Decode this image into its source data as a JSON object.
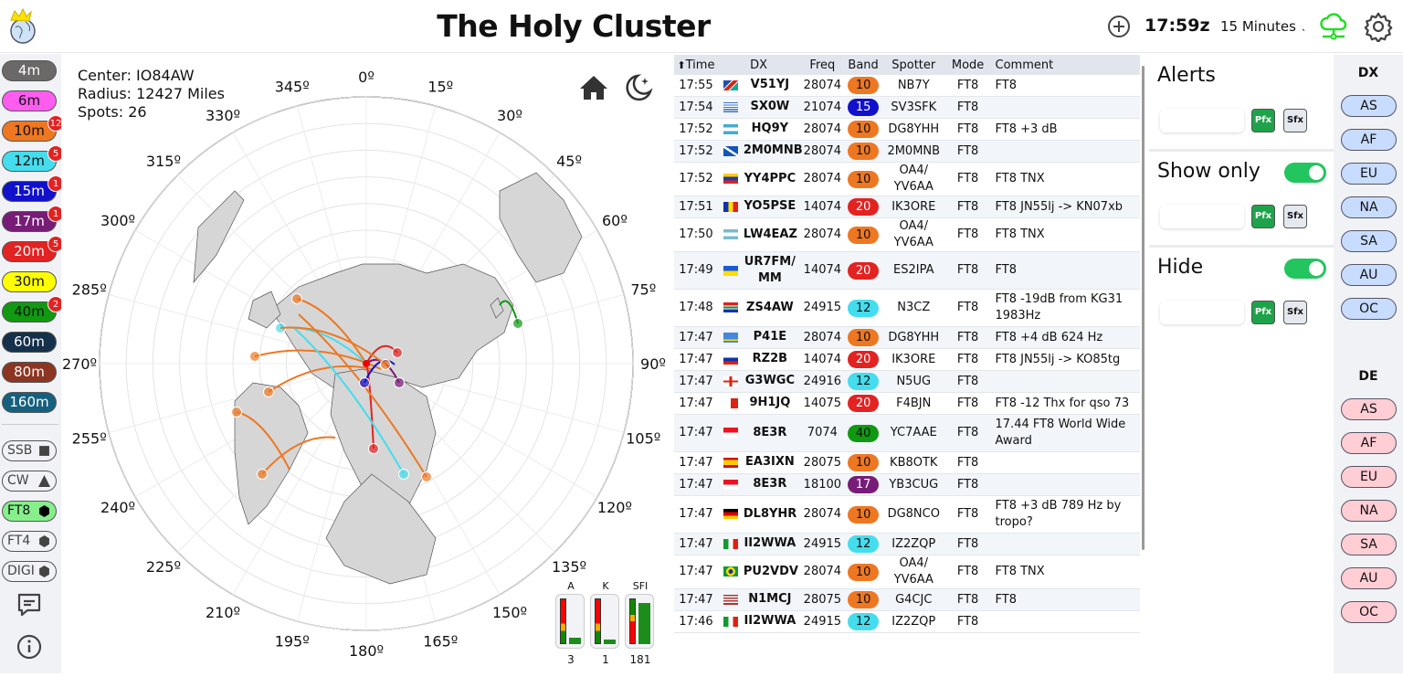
{
  "header": {
    "title": "The Holy Cluster",
    "clock": "17:59z",
    "window": "15 Minutes",
    "icons": {
      "logo": "globe-crown-logo",
      "add": "plus-circle-icon",
      "network": "cloud-network-icon",
      "settings": "gear-icon"
    },
    "network_color": "#22dd22"
  },
  "bands": [
    {
      "label": "4m",
      "color": "#6b6868",
      "text": "#fff",
      "count": null
    },
    {
      "label": "6m",
      "color": "#ff5cf0",
      "text": "#111",
      "count": null
    },
    {
      "label": "10m",
      "color": "#ee7722",
      "text": "#111",
      "count": "12"
    },
    {
      "label": "12m",
      "color": "#44ddee",
      "text": "#111",
      "count": "5"
    },
    {
      "label": "15m",
      "color": "#1111cc",
      "text": "#fff",
      "count": "1"
    },
    {
      "label": "17m",
      "color": "#771d77",
      "text": "#fff",
      "count": "1"
    },
    {
      "label": "20m",
      "color": "#e32222",
      "text": "#fff",
      "count": "5"
    },
    {
      "label": "30m",
      "color": "#ffff00",
      "text": "#111",
      "count": null
    },
    {
      "label": "40m",
      "color": "#119911",
      "text": "#111",
      "count": "2"
    },
    {
      "label": "60m",
      "color": "#15304a",
      "text": "#fff",
      "count": null
    },
    {
      "label": "80m",
      "color": "#8c3522",
      "text": "#fff",
      "count": null
    },
    {
      "label": "160m",
      "color": "#16607f",
      "text": "#fff",
      "count": null
    }
  ],
  "modes": [
    {
      "label": "SSB",
      "icon": "square-icon",
      "active": false
    },
    {
      "label": "CW",
      "icon": "triangle-icon",
      "active": false
    },
    {
      "label": "FT8",
      "icon": "hexagon-icon",
      "active": true
    },
    {
      "label": "FT4",
      "icon": "hexagon-icon",
      "active": false
    },
    {
      "label": "DIGI",
      "icon": "hexagon-icon",
      "active": false
    }
  ],
  "sidebar_icons": {
    "feedback": "chat-icon",
    "info": "info-icon"
  },
  "map": {
    "center": "Center: IO84AW",
    "radius": "Radius: 12427 Miles",
    "spots": "Spots: 26",
    "azimuths": [
      "0º",
      "15º",
      "30º",
      "45º",
      "60º",
      "75º",
      "90º",
      "105º",
      "120º",
      "135º",
      "150º",
      "165º",
      "180º",
      "195º",
      "210º",
      "225º",
      "240º",
      "255º",
      "270º",
      "285º",
      "300º",
      "315º",
      "330º",
      "345º"
    ],
    "icons": {
      "home": "home-icon",
      "night": "moon-stars-icon"
    },
    "solar": [
      {
        "label": "A",
        "value": "3",
        "level": 0.15
      },
      {
        "label": "K",
        "value": "1",
        "level": 0.1
      },
      {
        "label": "SFI",
        "value": "181",
        "level": 0.9
      }
    ]
  },
  "table": {
    "headers": [
      "Time",
      "DX",
      "Freq",
      "Band",
      "Spotter",
      "Mode",
      "Comment"
    ],
    "sort_icon": "sort-up-icon",
    "rows": [
      [
        "17:55",
        "namibia",
        "V51YJ",
        "28074",
        "10",
        "NB7Y",
        "FT8",
        "FT8"
      ],
      [
        "17:54",
        "greece",
        "SX0W",
        "21074",
        "15",
        "SV3SFK",
        "FT8",
        ""
      ],
      [
        "17:52",
        "honduras",
        "HQ9Y",
        "28074",
        "10",
        "DG8YHH",
        "FT8",
        "FT8 +3 dB"
      ],
      [
        "17:52",
        "scotland",
        "2M0MNB",
        "28074",
        "10",
        "2M0MNB",
        "FT8",
        ""
      ],
      [
        "17:52",
        "venezuela",
        "YY4PPC",
        "28074",
        "10",
        "OA4/ YV6AA",
        "FT8",
        "FT8 TNX"
      ],
      [
        "17:51",
        "romania",
        "YO5PSE",
        "14074",
        "20",
        "IK3ORE",
        "FT8",
        "FT8 JN55lj -> KN07xb"
      ],
      [
        "17:50",
        "argentina",
        "LW4EAZ",
        "28074",
        "10",
        "OA4/ YV6AA",
        "FT8",
        "FT8 TNX"
      ],
      [
        "17:49",
        "ukraine",
        "UR7FM/ MM",
        "14074",
        "20",
        "ES2IPA",
        "FT8",
        "FT8"
      ],
      [
        "17:48",
        "south-africa",
        "ZS4AW",
        "24915",
        "12",
        "N3CZ",
        "FT8",
        "FT8 -19dB from KG31 1983Hz"
      ],
      [
        "17:47",
        "aruba",
        "P41E",
        "28074",
        "10",
        "DG8YHH",
        "FT8",
        "FT8 +4 dB 624 Hz"
      ],
      [
        "17:47",
        "russia",
        "RZ2B",
        "14074",
        "20",
        "IK3ORE",
        "FT8",
        "FT8 JN55lj -> KO85tg"
      ],
      [
        "17:47",
        "england",
        "G3WGC",
        "24916",
        "12",
        "N5UG",
        "FT8",
        ""
      ],
      [
        "17:47",
        "malta",
        "9H1JQ",
        "14075",
        "20",
        "F4BJN",
        "FT8",
        "FT8 -12 Thx for qso 73"
      ],
      [
        "17:47",
        "indonesia",
        "8E3R",
        "7074",
        "40",
        "YC7AAE",
        "FT8",
        "17.44 FT8 World Wide Award"
      ],
      [
        "17:47",
        "spain",
        "EA3IXN",
        "28075",
        "10",
        "KB8OTK",
        "FT8",
        ""
      ],
      [
        "17:47",
        "indonesia",
        "8E3R",
        "18100",
        "17",
        "YB3CUG",
        "FT8",
        ""
      ],
      [
        "17:47",
        "germany",
        "DL8YHR",
        "28074",
        "10",
        "DG8NCO",
        "FT8",
        "FT8 +3 dB 789 Hz by tropo?"
      ],
      [
        "17:47",
        "italy",
        "II2WWA",
        "24915",
        "12",
        "IZ2ZQP",
        "FT8",
        ""
      ],
      [
        "17:47",
        "brazil",
        "PU2VDV",
        "28074",
        "10",
        "OA4/ YV6AA",
        "FT8",
        "FT8 TNX"
      ],
      [
        "17:47",
        "usa",
        "N1MCJ",
        "28075",
        "10",
        "G4CJC",
        "FT8",
        "FT8"
      ],
      [
        "17:46",
        "italy",
        "II2WWA",
        "24915",
        "12",
        "IZ2ZQP",
        "FT8",
        ""
      ]
    ]
  },
  "filters": {
    "alerts": "Alerts",
    "show_only": "Show only",
    "hide": "Hide",
    "pfx": "Pfx",
    "sfx": "Sfx",
    "show_only_on": true,
    "hide_on": true
  },
  "continents": {
    "dx_label": "DX",
    "de_label": "DE",
    "list": [
      "AS",
      "AF",
      "EU",
      "NA",
      "SA",
      "AU",
      "OC"
    ],
    "dx_color": "#c8dcff",
    "de_color": "#ffcdd4"
  }
}
